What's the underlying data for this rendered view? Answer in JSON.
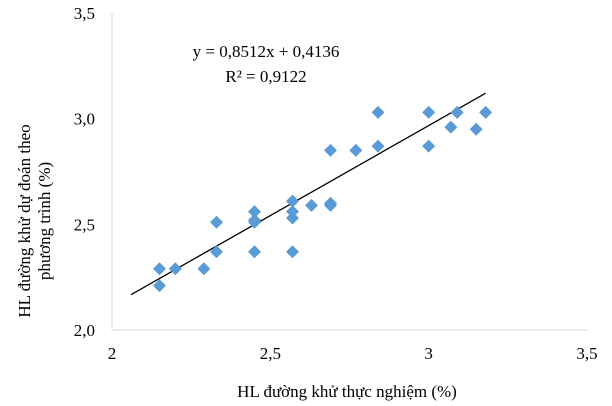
{
  "chart_data": {
    "type": "scatter",
    "title": "",
    "xlabel": "HL đường khử thực nghiệm (%)",
    "ylabel_lines": [
      "HL đường khử dự đoán theo",
      "phương trình (%)"
    ],
    "xlim": [
      2.0,
      3.5
    ],
    "ylim": [
      2.0,
      3.5
    ],
    "x_ticks": [
      2.0,
      2.5,
      3.0,
      3.5
    ],
    "x_tick_labels": [
      "2",
      "2,5",
      "3",
      "3,5"
    ],
    "y_ticks": [
      2.0,
      2.5,
      3.0,
      3.5
    ],
    "y_tick_labels": [
      "2,0",
      "2,5",
      "3,0",
      "3,5"
    ],
    "grid": false,
    "legend": "none",
    "series": [
      {
        "marker": "diamond",
        "color": "#5b9bd5",
        "points": [
          [
            2.15,
            2.29
          ],
          [
            2.15,
            2.21
          ],
          [
            2.2,
            2.29
          ],
          [
            2.29,
            2.29
          ],
          [
            2.33,
            2.51
          ],
          [
            2.33,
            2.37
          ],
          [
            2.45,
            2.56
          ],
          [
            2.45,
            2.52
          ],
          [
            2.45,
            2.51
          ],
          [
            2.45,
            2.37
          ],
          [
            2.57,
            2.61
          ],
          [
            2.57,
            2.56
          ],
          [
            2.57,
            2.53
          ],
          [
            2.57,
            2.37
          ],
          [
            2.63,
            2.59
          ],
          [
            2.69,
            2.6
          ],
          [
            2.69,
            2.59
          ],
          [
            2.69,
            2.85
          ],
          [
            2.77,
            2.85
          ],
          [
            2.84,
            2.87
          ],
          [
            2.84,
            3.03
          ],
          [
            3.0,
            3.03
          ],
          [
            3.0,
            2.87
          ],
          [
            3.07,
            2.96
          ],
          [
            3.09,
            3.03
          ],
          [
            3.15,
            2.95
          ],
          [
            3.18,
            3.03
          ]
        ]
      }
    ],
    "trendline": {
      "slope": 0.8512,
      "intercept": 0.4136,
      "x_range": [
        2.06,
        3.18
      ],
      "color": "#000000"
    },
    "annotations": {
      "equation": "y = 0,8512x + 0,4136",
      "r_squared": "R² = 0,9122"
    }
  }
}
